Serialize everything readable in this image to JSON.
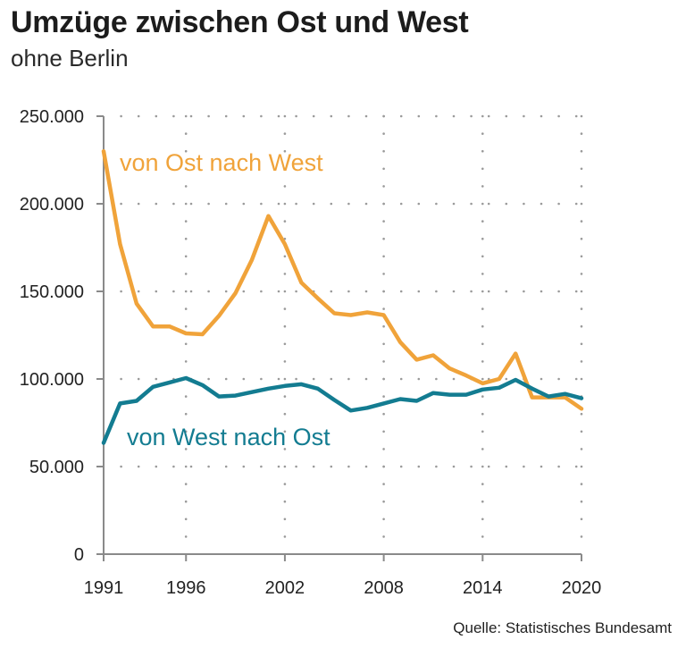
{
  "chart_data": {
    "type": "line",
    "title": "Umzüge zwischen Ost und West",
    "subtitle": "ohne Berlin",
    "source": "Quelle: Statistisches Bundesamt",
    "xlabel": "",
    "ylabel": "",
    "xlim": [
      1991,
      2020
    ],
    "ylim": [
      0,
      250000
    ],
    "x_ticks": [
      1991,
      1996,
      2002,
      2008,
      2014,
      2020
    ],
    "x_tick_labels": [
      "1991",
      "1996",
      "2002",
      "2008",
      "2014",
      "2020"
    ],
    "y_ticks": [
      0,
      50000,
      100000,
      150000,
      200000,
      250000
    ],
    "y_tick_labels": [
      "0",
      "50.000",
      "100.000",
      "150.000",
      "200.000",
      "250.000"
    ],
    "grid": "dotted",
    "x": [
      1991,
      1992,
      1993,
      1994,
      1995,
      1996,
      1997,
      1998,
      1999,
      2000,
      2001,
      2002,
      2003,
      2004,
      2005,
      2006,
      2007,
      2008,
      2009,
      2010,
      2011,
      2012,
      2013,
      2014,
      2015,
      2016,
      2017,
      2018,
      2019,
      2020
    ],
    "series": [
      {
        "name": "von Ost nach West",
        "color": "#f0a33a",
        "values": [
          230000,
          177000,
          143000,
          130000,
          130000,
          126000,
          125500,
          136000,
          149000,
          168000,
          193000,
          177000,
          155000,
          146000,
          137500,
          136500,
          138000,
          136500,
          121000,
          111000,
          113500,
          106000,
          102000,
          97500,
          100000,
          114500,
          89500,
          89500,
          89500,
          83000
        ]
      },
      {
        "name": "von West nach Ost",
        "color": "#137c91",
        "values": [
          63500,
          86000,
          87500,
          95500,
          98000,
          100500,
          96500,
          90000,
          90500,
          92500,
          94500,
          96000,
          97000,
          94500,
          88000,
          82000,
          83500,
          86000,
          88500,
          87500,
          92000,
          91000,
          91000,
          94000,
          95000,
          99500,
          94500,
          90000,
          91500,
          89000
        ]
      }
    ]
  }
}
